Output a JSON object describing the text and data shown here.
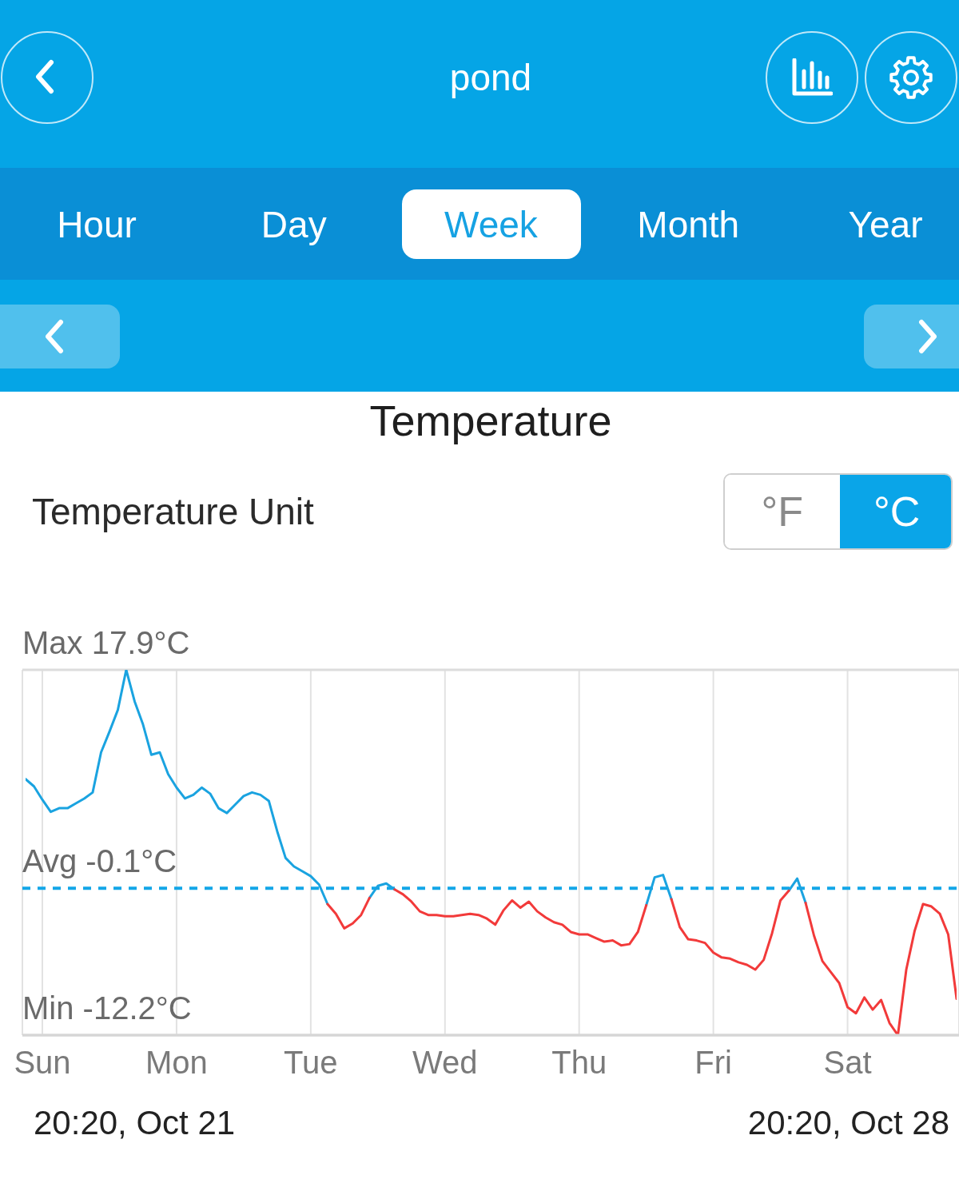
{
  "chart_data": [
    {
      "type": "other",
      "title": "pond",
      "annotations": [
        "Hour",
        "Day",
        "Week",
        "Month",
        "Year"
      ]
    },
    {
      "type": "other",
      "title": "Temperature",
      "annotations": [
        "Temperature Unit",
        "°F",
        "°C"
      ]
    },
    {
      "type": "line",
      "categories": [
        null,
        null,
        "Sun",
        null,
        null,
        null,
        null,
        null,
        null,
        null,
        null,
        null,
        null,
        null,
        null,
        null,
        null,
        null,
        "Mon",
        null,
        null,
        null,
        null,
        null,
        null,
        null,
        null,
        null,
        null,
        null,
        null,
        null,
        null,
        null,
        "Tue",
        null,
        null,
        null,
        null,
        null,
        null,
        null,
        null,
        null,
        null,
        null,
        null,
        null,
        null,
        null,
        "Wed",
        null,
        null,
        null,
        null,
        null,
        null,
        null,
        null,
        null,
        null,
        null,
        null,
        null,
        null,
        null,
        "Thu",
        null,
        null,
        null,
        null,
        null,
        null,
        null,
        null,
        null,
        null,
        null,
        null,
        null,
        null,
        null,
        "Fri",
        null,
        null,
        null,
        null,
        null,
        null,
        null,
        null,
        null,
        null,
        null,
        null,
        null,
        null,
        null,
        "Sat",
        null,
        null,
        null,
        null,
        null,
        null,
        null,
        null,
        null,
        null,
        null,
        null,
        null
      ],
      "series": [
        {
          "color": "#1aa3e0",
          "values": [
            8.9,
            8.3,
            7.2,
            6.2,
            6.5,
            6.5,
            6.9,
            7.3,
            7.8,
            11.1,
            12.8,
            14.6,
            17.9,
            15.3,
            13.4,
            10.9,
            11.1,
            9.3,
            8.2,
            7.3,
            7.6,
            8.2,
            7.7,
            6.5,
            6.1,
            6.8,
            7.5,
            7.8,
            7.6,
            7.1,
            4.6,
            2.4,
            1.7,
            1.3,
            0.9,
            0.2,
            -1.4,
            null,
            null,
            null,
            null,
            -0.9,
            0.1,
            0.3,
            -0.2,
            null,
            null,
            null,
            null,
            null,
            null,
            null,
            null,
            null,
            null,
            null,
            null,
            null,
            null,
            null,
            null,
            null,
            null,
            null,
            null,
            null,
            null,
            null,
            null,
            null,
            null,
            null,
            null,
            null,
            -1.5,
            0.8,
            1.0,
            -1.0,
            null,
            null,
            null,
            null,
            null,
            null,
            null,
            null,
            null,
            null,
            null,
            null,
            null,
            -0.3,
            0.7,
            -1.3,
            null,
            null,
            null,
            null,
            null,
            null,
            null,
            null,
            null,
            null,
            null,
            null,
            null,
            null,
            null,
            null,
            null,
            null
          ]
        },
        {
          "color": "#f23a3a",
          "values": [
            null,
            null,
            null,
            null,
            null,
            null,
            null,
            null,
            null,
            null,
            null,
            null,
            null,
            null,
            null,
            null,
            null,
            null,
            null,
            null,
            null,
            null,
            null,
            null,
            null,
            null,
            null,
            null,
            null,
            null,
            null,
            null,
            null,
            null,
            null,
            null,
            -1.4,
            -2.2,
            -3.4,
            -3.0,
            -2.3,
            -0.9,
            null,
            null,
            -0.2,
            -0.6,
            -1.2,
            -2.0,
            -2.3,
            -2.3,
            -2.4,
            -2.4,
            -2.3,
            -2.2,
            -2.3,
            -2.6,
            -3.1,
            -1.9,
            -1.1,
            -1.7,
            -1.2,
            -2.0,
            -2.5,
            -2.9,
            -3.1,
            -3.7,
            -3.9,
            -3.9,
            -4.2,
            -4.5,
            -4.4,
            -4.8,
            -4.7,
            -3.7,
            -1.5,
            null,
            null,
            -1.0,
            -3.3,
            -4.3,
            -4.4,
            -4.6,
            -5.4,
            -5.8,
            -5.9,
            -6.2,
            -6.4,
            -6.8,
            -6.0,
            -3.8,
            -1.1,
            -0.3,
            null,
            -1.3,
            -4.0,
            -6.1,
            -7.0,
            -7.9,
            -9.9,
            -10.4,
            -9.1,
            -10.1,
            -9.3,
            -11.2,
            -12.2,
            -6.8,
            -3.6,
            -1.4,
            -1.6,
            -2.2,
            -3.9,
            -9.2
          ]
        }
      ],
      "ylim": [
        -12.2,
        17.9
      ],
      "grid": "x",
      "ref_lines": [
        {
          "axis": "y",
          "value": 17.9,
          "label": "Max 17.9°C",
          "color": "#dcdcdc",
          "line_style": "solid"
        },
        {
          "axis": "y",
          "value": -0.1,
          "label": "Avg -0.1°C",
          "color": "#13a6e8",
          "line_style": "dashed"
        },
        {
          "axis": "y",
          "value": -12.2,
          "label": "Min -12.2°C",
          "color": "#dcdcdc",
          "line_style": "solid"
        }
      ],
      "annotations": [
        "20:20, Oct 21",
        "20:20, Oct 28"
      ]
    }
  ]
}
